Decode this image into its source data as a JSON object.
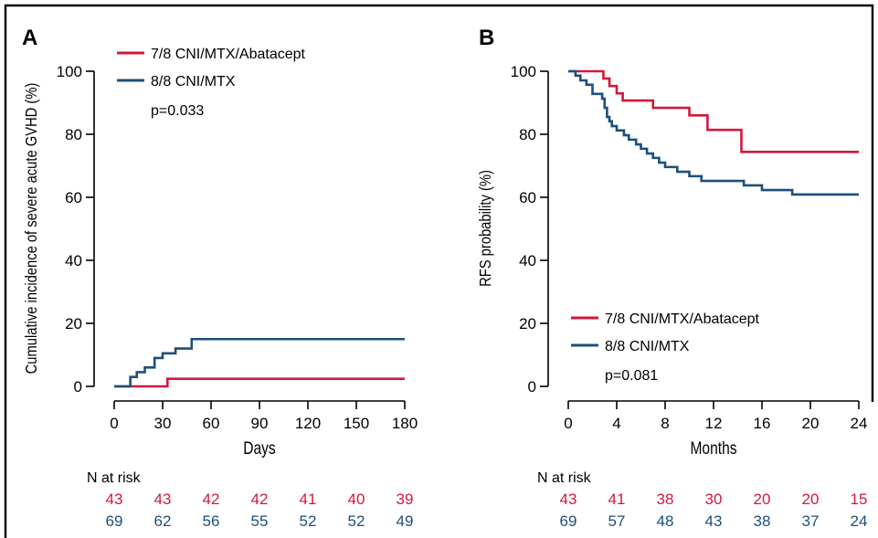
{
  "colors": {
    "abatacept": "#d4173a",
    "cni": "#1c4f7c",
    "axis": "#000000",
    "frame": "#000000"
  },
  "chart_data": [
    {
      "panel_label": "A",
      "type": "line",
      "step": true,
      "xlabel": "Days",
      "ylabel": "Cumulative incidence of severe acute GVHD (%)",
      "xlim": [
        0,
        180
      ],
      "ylim": [
        0,
        100
      ],
      "xticks": [
        0,
        30,
        60,
        90,
        120,
        150,
        180
      ],
      "yticks": [
        0,
        20,
        40,
        60,
        80,
        100
      ],
      "legend_position": "top-left",
      "pvalue": "p=0.033",
      "series": [
        {
          "name": "7/8 CNI/MTX/Abatacept",
          "color_key": "abatacept",
          "x": [
            0,
            33,
            180
          ],
          "y": [
            0,
            2.4,
            2.4
          ]
        },
        {
          "name": "8/8 CNI/MTX",
          "color_key": "cni",
          "x": [
            0,
            10,
            14,
            19,
            25,
            30,
            38,
            48,
            180
          ],
          "y": [
            0,
            3,
            4.5,
            6,
            9,
            10.5,
            12,
            15,
            15
          ]
        }
      ],
      "risk_table": {
        "title": "N at risk",
        "rows": [
          {
            "color_key": "abatacept",
            "values": [
              "43",
              "43",
              "42",
              "42",
              "41",
              "40",
              "39"
            ]
          },
          {
            "color_key": "cni",
            "values": [
              "69",
              "62",
              "56",
              "55",
              "52",
              "52",
              "49"
            ]
          }
        ]
      }
    },
    {
      "panel_label": "B",
      "type": "line",
      "step": true,
      "xlabel": "Months",
      "ylabel": "RFS probability (%)",
      "xlim": [
        0,
        24
      ],
      "ylim": [
        0,
        100
      ],
      "xticks": [
        0,
        4,
        8,
        12,
        16,
        20,
        24
      ],
      "yticks": [
        0,
        20,
        40,
        60,
        80,
        100
      ],
      "legend_position": "bottom-left",
      "pvalue": "p=0.081",
      "series": [
        {
          "name": "7/8 CNI/MTX/Abatacept",
          "color_key": "abatacept",
          "x": [
            0,
            2.9,
            3.4,
            4.0,
            4.5,
            7.0,
            10.0,
            11.5,
            14.3,
            24
          ],
          "y": [
            100,
            97.7,
            95.3,
            93,
            90.7,
            88.4,
            86,
            81.4,
            74.4,
            74.4
          ]
        },
        {
          "name": "8/8 CNI/MTX",
          "color_key": "cni",
          "x": [
            0,
            0.6,
            1.0,
            1.5,
            2.0,
            2.8,
            3.0,
            3.2,
            3.4,
            3.6,
            4.0,
            4.6,
            5.0,
            5.6,
            6.0,
            6.5,
            7.0,
            7.5,
            8.0,
            9.0,
            10.0,
            11.0,
            14.5,
            16.0,
            18.5,
            24
          ],
          "y": [
            100,
            98.6,
            97.1,
            95.7,
            92.8,
            91.3,
            88.4,
            85.5,
            84.1,
            82.6,
            81.2,
            79.7,
            78.3,
            76.8,
            75.4,
            73.9,
            72.5,
            71,
            69.6,
            68.1,
            66.7,
            65.2,
            63.8,
            62.3,
            60.9,
            60.9
          ]
        }
      ],
      "risk_table": {
        "title": "N at risk",
        "rows": [
          {
            "color_key": "abatacept",
            "values": [
              "43",
              "41",
              "38",
              "30",
              "20",
              "20",
              "15"
            ]
          },
          {
            "color_key": "cni",
            "values": [
              "69",
              "57",
              "48",
              "43",
              "38",
              "37",
              "24"
            ]
          }
        ]
      }
    }
  ]
}
